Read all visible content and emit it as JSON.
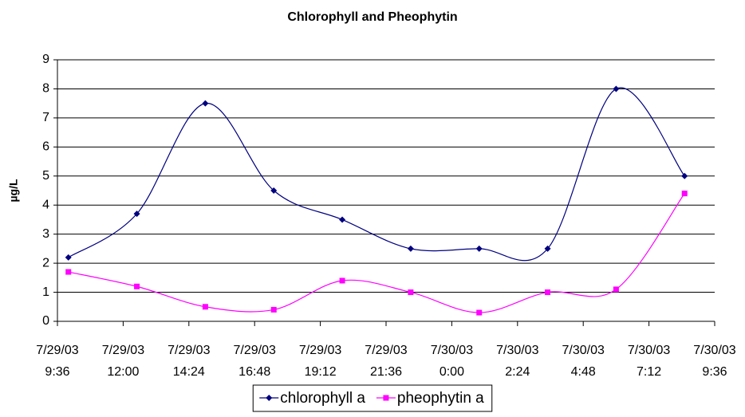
{
  "chart_data": {
    "type": "line",
    "title": "Chlorophyll and Pheophytin",
    "y_label": "µg/L",
    "x": [
      "7/29/03 10:00",
      "7/29/03 12:30",
      "7/29/03 15:00",
      "7/29/03 17:30",
      "7/29/03 20:00",
      "7/29/03 22:30",
      "7/30/03 1:00",
      "7/30/03 3:30",
      "7/30/03 6:00",
      "7/30/03 8:30"
    ],
    "series": [
      {
        "name": "chlorophyll a",
        "color": "#000080",
        "marker": "diamond",
        "values": [
          2.2,
          3.7,
          7.5,
          4.5,
          3.5,
          2.5,
          2.5,
          2.5,
          8.0,
          5.0
        ]
      },
      {
        "name": "pheophytin a",
        "color": "#ff00ff",
        "marker": "square",
        "values": [
          1.7,
          1.2,
          0.5,
          0.4,
          1.4,
          1.0,
          0.3,
          1.0,
          1.1,
          4.4
        ]
      }
    ],
    "xlim": [
      "7/29/03 9:36",
      "7/30/03 9:36"
    ],
    "xticks": [
      "7/29/03 9:36",
      "7/29/03 12:00",
      "7/29/03 14:24",
      "7/29/03 16:48",
      "7/29/03 19:12",
      "7/29/03 21:36",
      "7/30/03 0:00",
      "7/30/03 2:24",
      "7/30/03 4:48",
      "7/30/03 7:12",
      "7/30/03 9:36"
    ],
    "ylim": [
      0,
      9
    ],
    "yticks": [
      0,
      1,
      2,
      3,
      4,
      5,
      6,
      7,
      8,
      9
    ],
    "grid": true,
    "smooth": true,
    "legend": "bottom"
  }
}
